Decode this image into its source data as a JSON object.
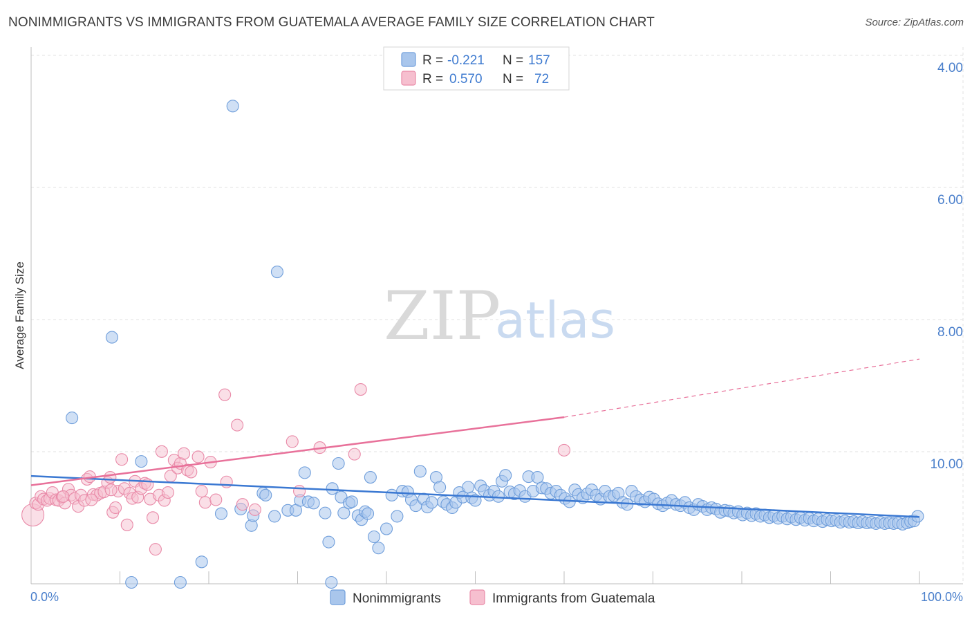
{
  "header": {
    "title": "NONIMMIGRANTS VS IMMIGRANTS FROM GUATEMALA AVERAGE FAMILY SIZE CORRELATION CHART",
    "source": "Source: ZipAtlas.com"
  },
  "watermark": {
    "zip": "ZIP",
    "atlas": "atlas"
  },
  "legend": {
    "rows": [
      {
        "r_label": "R =",
        "r_value": "-0.221",
        "n_label": "N =",
        "n_value": "157",
        "color": "#a9c6ec",
        "stroke": "#6f9edb"
      },
      {
        "r_label": "R =",
        "r_value": "0.570",
        "n_label": "N =",
        "n_value": "72",
        "color": "#f6bfcf",
        "stroke": "#e98aa8"
      }
    ]
  },
  "bottom_legend": {
    "items": [
      {
        "label": "Nonimmigrants",
        "color": "#a9c6ec",
        "stroke": "#6f9edb"
      },
      {
        "label": "Immigrants from Guatemala",
        "color": "#f6bfcf",
        "stroke": "#e98aa8"
      }
    ]
  },
  "chart_data": {
    "type": "scatter",
    "title": "NONIMMIGRANTS VS IMMIGRANTS FROM GUATEMALA AVERAGE FAMILY SIZE CORRELATION CHART",
    "xlabel": "",
    "ylabel": "Average Family Size",
    "xlim": [
      0,
      100
    ],
    "ylim": [
      2.0,
      10.2
    ],
    "x_tick_labels": [
      "0.0%",
      "100.0%"
    ],
    "y_ticks": [
      4,
      6,
      8,
      10
    ],
    "y_tick_labels": [
      "4.00",
      "6.00",
      "8.00",
      "10.00"
    ],
    "grid": true,
    "legend_placement": "top-center",
    "series": [
      {
        "name": "Nonimmigrants",
        "color": "#4a86d8",
        "fill": "#a9c6ec",
        "trend": {
          "x": [
            0,
            100
          ],
          "y": [
            3.81,
            3.19
          ],
          "color": "#3a78d2"
        },
        "points": [
          [
            4.6,
            4.69
          ],
          [
            9.1,
            5.91
          ],
          [
            12.4,
            4.03
          ],
          [
            22.7,
            9.41
          ],
          [
            27.7,
            6.9
          ],
          [
            11.3,
            2.13
          ],
          [
            16.8,
            2.08
          ],
          [
            19.2,
            2.51
          ],
          [
            21.4,
            3.24
          ],
          [
            23.6,
            3.31
          ],
          [
            24.8,
            3.06
          ],
          [
            25.0,
            3.21
          ],
          [
            26.1,
            3.55
          ],
          [
            26.4,
            3.52
          ],
          [
            27.4,
            3.2
          ],
          [
            28.9,
            3.29
          ],
          [
            29.8,
            3.29
          ],
          [
            30.3,
            3.44
          ],
          [
            30.8,
            3.86
          ],
          [
            31.2,
            3.42
          ],
          [
            31.8,
            3.4
          ],
          [
            33.1,
            3.25
          ],
          [
            33.5,
            2.81
          ],
          [
            33.9,
            3.62
          ],
          [
            34.6,
            4.0
          ],
          [
            34.9,
            3.49
          ],
          [
            35.2,
            3.25
          ],
          [
            35.8,
            3.4
          ],
          [
            36.1,
            3.42
          ],
          [
            36.8,
            3.21
          ],
          [
            37.2,
            3.15
          ],
          [
            37.6,
            3.27
          ],
          [
            37.9,
            3.24
          ],
          [
            38.2,
            3.79
          ],
          [
            38.6,
            2.89
          ],
          [
            39.1,
            2.72
          ],
          [
            40.0,
            3.01
          ],
          [
            40.6,
            3.52
          ],
          [
            41.2,
            3.2
          ],
          [
            41.8,
            3.58
          ],
          [
            42.4,
            3.57
          ],
          [
            42.8,
            3.45
          ],
          [
            43.3,
            3.36
          ],
          [
            43.8,
            3.88
          ],
          [
            44.2,
            3.46
          ],
          [
            44.6,
            3.34
          ],
          [
            45.1,
            3.41
          ],
          [
            45.6,
            3.79
          ],
          [
            46.0,
            3.64
          ],
          [
            46.4,
            3.42
          ],
          [
            46.8,
            3.38
          ],
          [
            47.4,
            3.33
          ],
          [
            47.8,
            3.41
          ],
          [
            48.2,
            3.56
          ],
          [
            48.6,
            3.49
          ],
          [
            49.2,
            3.64
          ],
          [
            49.6,
            3.48
          ],
          [
            50.0,
            3.44
          ],
          [
            50.6,
            3.66
          ],
          [
            51.0,
            3.59
          ],
          [
            51.6,
            3.52
          ],
          [
            52.1,
            3.58
          ],
          [
            52.6,
            3.5
          ],
          [
            53.0,
            3.73
          ],
          [
            53.4,
            3.82
          ],
          [
            53.9,
            3.57
          ],
          [
            54.4,
            3.54
          ],
          [
            55.0,
            3.59
          ],
          [
            55.6,
            3.5
          ],
          [
            56.0,
            3.8
          ],
          [
            56.5,
            3.58
          ],
          [
            57.0,
            3.79
          ],
          [
            57.5,
            3.63
          ],
          [
            58.0,
            3.62
          ],
          [
            58.5,
            3.55
          ],
          [
            59.1,
            3.58
          ],
          [
            59.6,
            3.52
          ],
          [
            60.1,
            3.47
          ],
          [
            60.6,
            3.42
          ],
          [
            61.2,
            3.6
          ],
          [
            61.6,
            3.53
          ],
          [
            62.1,
            3.48
          ],
          [
            62.6,
            3.54
          ],
          [
            63.1,
            3.6
          ],
          [
            63.6,
            3.52
          ],
          [
            64.1,
            3.46
          ],
          [
            64.6,
            3.58
          ],
          [
            65.1,
            3.5
          ],
          [
            65.6,
            3.51
          ],
          [
            66.1,
            3.55
          ],
          [
            66.6,
            3.41
          ],
          [
            67.1,
            3.38
          ],
          [
            67.6,
            3.58
          ],
          [
            68.1,
            3.5
          ],
          [
            68.6,
            3.45
          ],
          [
            69.1,
            3.42
          ],
          [
            69.6,
            3.49
          ],
          [
            70.1,
            3.46
          ],
          [
            70.6,
            3.39
          ],
          [
            71.1,
            3.36
          ],
          [
            71.6,
            3.4
          ],
          [
            72.1,
            3.44
          ],
          [
            72.6,
            3.38
          ],
          [
            73.1,
            3.36
          ],
          [
            73.6,
            3.41
          ],
          [
            74.1,
            3.33
          ],
          [
            74.6,
            3.3
          ],
          [
            75.1,
            3.38
          ],
          [
            75.6,
            3.35
          ],
          [
            76.1,
            3.3
          ],
          [
            76.6,
            3.33
          ],
          [
            77.1,
            3.31
          ],
          [
            77.6,
            3.26
          ],
          [
            78.1,
            3.29
          ],
          [
            78.6,
            3.28
          ],
          [
            79.1,
            3.25
          ],
          [
            79.6,
            3.27
          ],
          [
            80.1,
            3.22
          ],
          [
            80.6,
            3.25
          ],
          [
            81.1,
            3.21
          ],
          [
            81.6,
            3.24
          ],
          [
            82.1,
            3.2
          ],
          [
            82.6,
            3.22
          ],
          [
            83.1,
            3.18
          ],
          [
            83.6,
            3.21
          ],
          [
            84.1,
            3.17
          ],
          [
            84.6,
            3.2
          ],
          [
            85.1,
            3.16
          ],
          [
            85.6,
            3.19
          ],
          [
            86.1,
            3.15
          ],
          [
            86.6,
            3.18
          ],
          [
            87.1,
            3.14
          ],
          [
            87.6,
            3.17
          ],
          [
            88.1,
            3.13
          ],
          [
            88.6,
            3.16
          ],
          [
            89.1,
            3.12
          ],
          [
            89.6,
            3.15
          ],
          [
            90.1,
            3.13
          ],
          [
            90.6,
            3.14
          ],
          [
            91.1,
            3.11
          ],
          [
            91.6,
            3.13
          ],
          [
            92.1,
            3.11
          ],
          [
            92.6,
            3.12
          ],
          [
            93.1,
            3.1
          ],
          [
            93.6,
            3.12
          ],
          [
            94.1,
            3.1
          ],
          [
            94.6,
            3.11
          ],
          [
            95.1,
            3.09
          ],
          [
            95.6,
            3.11
          ],
          [
            96.1,
            3.09
          ],
          [
            96.6,
            3.1
          ],
          [
            97.1,
            3.09
          ],
          [
            97.6,
            3.1
          ],
          [
            98.1,
            3.08
          ],
          [
            98.6,
            3.1
          ],
          [
            99.0,
            3.12
          ],
          [
            99.4,
            3.13
          ],
          [
            99.8,
            3.2
          ],
          [
            33.8,
            2.06
          ]
        ]
      },
      {
        "name": "Immigrants from Guatemala",
        "color": "#e8719a",
        "fill": "#f6bfcf",
        "trend": {
          "x": [
            0,
            60
          ],
          "y": [
            3.67,
            4.7
          ],
          "color": "#e8719a",
          "dash_to_x": 100,
          "dash_to_y": 5.58
        },
        "points": [
          [
            0.2,
            3.22
          ],
          [
            0.5,
            3.4
          ],
          [
            0.8,
            3.38
          ],
          [
            1.1,
            3.5
          ],
          [
            1.4,
            3.46
          ],
          [
            1.8,
            3.44
          ],
          [
            2.1,
            3.47
          ],
          [
            2.4,
            3.56
          ],
          [
            2.8,
            3.45
          ],
          [
            3.1,
            3.44
          ],
          [
            3.5,
            3.49
          ],
          [
            3.8,
            3.4
          ],
          [
            4.2,
            3.61
          ],
          [
            4.5,
            3.52
          ],
          [
            4.9,
            3.47
          ],
          [
            5.3,
            3.35
          ],
          [
            5.6,
            3.52
          ],
          [
            6.0,
            3.44
          ],
          [
            6.3,
            3.76
          ],
          [
            6.6,
            3.8
          ],
          [
            7.0,
            3.53
          ],
          [
            7.4,
            3.52
          ],
          [
            7.8,
            3.55
          ],
          [
            8.2,
            3.57
          ],
          [
            8.6,
            3.71
          ],
          [
            8.9,
            3.79
          ],
          [
            9.2,
            3.26
          ],
          [
            9.5,
            3.33
          ],
          [
            9.8,
            3.58
          ],
          [
            10.2,
            4.06
          ],
          [
            10.5,
            3.62
          ],
          [
            10.8,
            3.07
          ],
          [
            11.1,
            3.55
          ],
          [
            11.4,
            3.47
          ],
          [
            11.7,
            3.73
          ],
          [
            12.0,
            3.49
          ],
          [
            12.4,
            3.62
          ],
          [
            12.8,
            3.7
          ],
          [
            13.1,
            3.68
          ],
          [
            13.4,
            3.46
          ],
          [
            13.7,
            3.18
          ],
          [
            14.0,
            2.7
          ],
          [
            14.4,
            3.52
          ],
          [
            14.7,
            4.18
          ],
          [
            15.0,
            3.44
          ],
          [
            15.4,
            3.56
          ],
          [
            15.7,
            3.81
          ],
          [
            16.1,
            4.05
          ],
          [
            16.5,
            3.93
          ],
          [
            16.8,
            4.0
          ],
          [
            17.2,
            4.15
          ],
          [
            17.6,
            3.9
          ],
          [
            18.0,
            3.87
          ],
          [
            18.8,
            4.1
          ],
          [
            19.2,
            3.58
          ],
          [
            19.6,
            3.41
          ],
          [
            20.2,
            4.02
          ],
          [
            20.8,
            3.45
          ],
          [
            21.8,
            5.04
          ],
          [
            23.2,
            4.58
          ],
          [
            23.8,
            3.38
          ],
          [
            25.2,
            3.3
          ],
          [
            29.4,
            4.33
          ],
          [
            30.2,
            3.58
          ],
          [
            32.5,
            4.24
          ],
          [
            36.4,
            4.14
          ],
          [
            37.1,
            5.12
          ],
          [
            60.0,
            4.2
          ],
          [
            3.6,
            3.5
          ],
          [
            6.8,
            3.45
          ],
          [
            9.0,
            3.6
          ],
          [
            22.0,
            3.72
          ]
        ]
      }
    ]
  }
}
